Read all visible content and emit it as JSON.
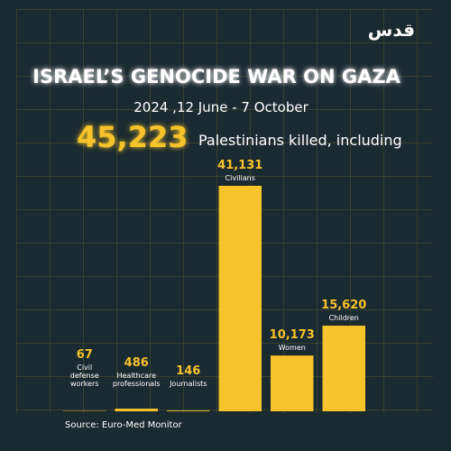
{
  "chart_data": {
    "type": "bar",
    "title": "ISRAEL’S GENOCIDE WAR ON GAZA",
    "subtitle": "2024 ,12 June - 7 October",
    "total": {
      "value": 45223,
      "label": "45,223"
    },
    "total_caption": "Palestinians killed, including",
    "categories": [
      [
        "Civil",
        "defense",
        "workers"
      ],
      [
        "Healthcare",
        "professionals"
      ],
      [
        "Journalists"
      ],
      [
        "Civilians"
      ],
      [
        "Women"
      ],
      [
        "Children"
      ]
    ],
    "values": [
      67,
      486,
      146,
      41131,
      10173,
      15620
    ],
    "value_labels": [
      "67",
      "486",
      "146",
      "41,131",
      "10,173",
      "15,620"
    ],
    "color": "#f6c32a",
    "source": "Source: Euro-Med Monitor",
    "logo": "قدس"
  }
}
